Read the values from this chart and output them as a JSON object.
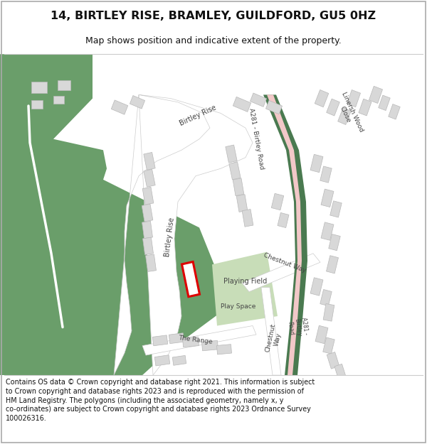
{
  "title": "14, BIRTLEY RISE, BRAMLEY, GUILDFORD, GU5 0HZ",
  "subtitle": "Map shows position and indicative extent of the property.",
  "footer_line1": "Contains OS data © Crown copyright and database right 2021. This information is subject",
  "footer_line2": "to Crown copyright and database rights 2023 and is reproduced with the permission of",
  "footer_line3": "HM Land Registry. The polygons (including the associated geometry, namely x, y",
  "footer_line4": "co-ordinates) are subject to Crown copyright and database rights 2023 Ordnance Survey",
  "footer_line5": "100026316.",
  "bg_color": "#ffffff",
  "map_bg": "#f7f6f3",
  "green_color": "#6a9e6a",
  "light_green": "#c8ddb8",
  "road_pink": "#f2c8c8",
  "road_dark_green": "#4a7a50",
  "building_fill": "#d8d8d8",
  "building_outline": "#b8b8b8",
  "plot_outline": "#dd0000",
  "border_color": "#cccccc",
  "text_color": "#444444"
}
